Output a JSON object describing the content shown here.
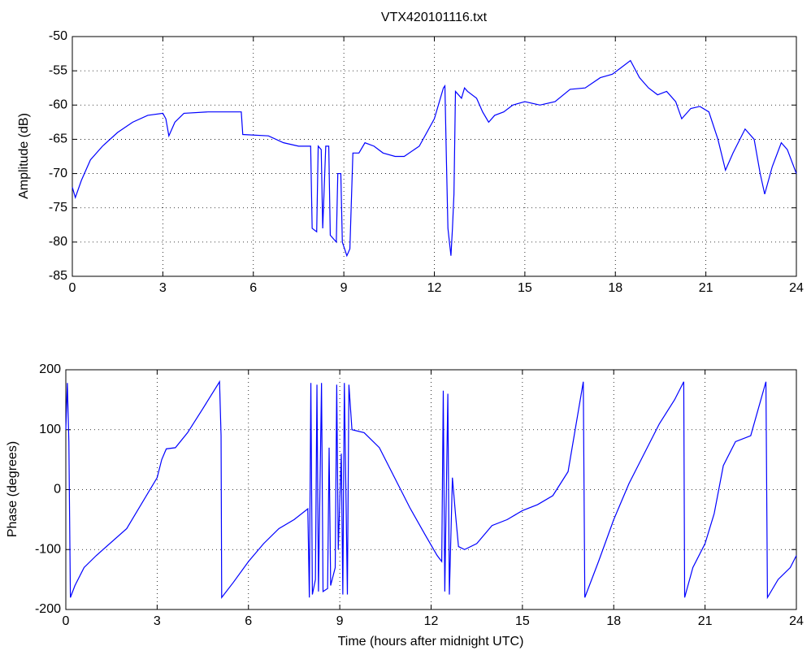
{
  "chart_data": [
    {
      "type": "line",
      "title": "VTX420101116.txt",
      "ylabel": "Amplitude (dB)",
      "color": "#0000ff",
      "grid": true,
      "xlim": [
        0,
        24
      ],
      "xticks": [
        0,
        3,
        6,
        9,
        12,
        15,
        18,
        21,
        24
      ],
      "ylim": [
        -85,
        -50
      ],
      "yticks": [
        -85,
        -80,
        -75,
        -70,
        -65,
        -60,
        -55,
        -50
      ],
      "x": [
        0,
        0.1,
        0.3,
        0.6,
        1,
        1.5,
        2,
        2.5,
        3,
        3.1,
        3.2,
        3.4,
        3.7,
        4.5,
        5.6,
        5.65,
        6.5,
        7,
        7.5,
        7.9,
        7.95,
        8.1,
        8.15,
        8.25,
        8.3,
        8.4,
        8.5,
        8.55,
        8.75,
        8.8,
        8.9,
        8.95,
        9.1,
        9.2,
        9.3,
        9.5,
        9.7,
        10,
        10.3,
        10.7,
        11,
        11.5,
        12,
        12.3,
        12.35,
        12.4,
        12.45,
        12.5,
        12.55,
        12.6,
        12.65,
        12.7,
        12.9,
        13,
        13.1,
        13.4,
        13.6,
        13.8,
        14,
        14.3,
        14.6,
        15,
        15.5,
        16,
        16.5,
        17,
        17.5,
        17.9,
        18.5,
        18.8,
        19.1,
        19.4,
        19.7,
        20,
        20.2,
        20.5,
        20.8,
        21.1,
        21.4,
        21.65,
        21.9,
        22.3,
        22.6,
        22.8,
        22.95,
        23.2,
        23.5,
        23.7,
        24
      ],
      "values": [
        -72,
        -73.5,
        -71,
        -68,
        -66,
        -64,
        -62.5,
        -61.5,
        -61.2,
        -62,
        -64.5,
        -62.5,
        -61.2,
        -61,
        -61,
        -64.3,
        -64.5,
        -65.5,
        -66,
        -66,
        -78,
        -78.5,
        -66,
        -66.5,
        -78,
        -66,
        -66,
        -79,
        -80,
        -70,
        -70,
        -80,
        -82,
        -81,
        -67,
        -67,
        -65.5,
        -66,
        -67,
        -67.5,
        -67.5,
        -66,
        -62,
        -57.5,
        -57.2,
        -68,
        -78,
        -80,
        -82,
        -78,
        -73,
        -58,
        -59,
        -57.5,
        -58,
        -59,
        -61,
        -62.5,
        -61.5,
        -61,
        -60,
        -59.5,
        -60,
        -59.5,
        -57.7,
        -57.5,
        -56,
        -55.5,
        -53.5,
        -56,
        -57.5,
        -58.5,
        -58,
        -59.5,
        -62,
        -60.5,
        -60.2,
        -61,
        -65,
        -69.5,
        -67,
        -63.5,
        -65,
        -70,
        -73,
        -69,
        -65.5,
        -66.5,
        -70
      ]
    },
    {
      "type": "line",
      "ylabel": "Phase (degrees)",
      "xlabel": "Time (hours after midnight UTC)",
      "color": "#0000ff",
      "grid": true,
      "xlim": [
        0,
        24
      ],
      "xticks": [
        0,
        3,
        6,
        9,
        12,
        15,
        18,
        21,
        24
      ],
      "ylim": [
        -200,
        200
      ],
      "yticks": [
        -200,
        -100,
        0,
        100,
        200
      ],
      "x": [
        0,
        0.05,
        0.1,
        0.15,
        0.3,
        0.6,
        1,
        2,
        3,
        3.15,
        3.3,
        3.6,
        4,
        4.5,
        5.05,
        5.1,
        5.12,
        5.5,
        6,
        6.5,
        7,
        7.5,
        7.95,
        8.0,
        8.05,
        8.1,
        8.2,
        8.25,
        8.3,
        8.4,
        8.45,
        8.6,
        8.65,
        8.7,
        8.85,
        8.9,
        8.95,
        9.05,
        9.1,
        9.15,
        9.25,
        9.3,
        9.4,
        9.8,
        10.3,
        10.8,
        11.3,
        11.8,
        12.2,
        12.35,
        12.4,
        12.45,
        12.55,
        12.6,
        12.7,
        12.8,
        12.9,
        13.1,
        13.5,
        14,
        14.5,
        15,
        15.5,
        16,
        16.5,
        17,
        17.05,
        17.5,
        18,
        18.5,
        19,
        19.5,
        20,
        20.3,
        20.33,
        20.6,
        21,
        21.3,
        21.6,
        22,
        22.5,
        23,
        23.05,
        23.4,
        23.8,
        24
      ],
      "values": [
        100,
        178,
        80,
        -180,
        -160,
        -130,
        -110,
        -65,
        20,
        50,
        68,
        70,
        95,
        135,
        180,
        90,
        -180,
        -155,
        -120,
        -90,
        -65,
        -50,
        -32,
        -180,
        178,
        -175,
        -150,
        175,
        -170,
        178,
        -170,
        -165,
        70,
        -160,
        -130,
        175,
        -100,
        60,
        -175,
        178,
        -175,
        175,
        100,
        95,
        70,
        20,
        -30,
        -75,
        -110,
        -120,
        165,
        -170,
        160,
        -175,
        20,
        -40,
        -95,
        -100,
        -90,
        -60,
        -50,
        -35,
        -25,
        -10,
        30,
        180,
        -180,
        -120,
        -50,
        10,
        60,
        110,
        150,
        180,
        -180,
        -130,
        -90,
        -40,
        40,
        80,
        90,
        180,
        -180,
        -150,
        -130,
        -110
      ]
    }
  ]
}
